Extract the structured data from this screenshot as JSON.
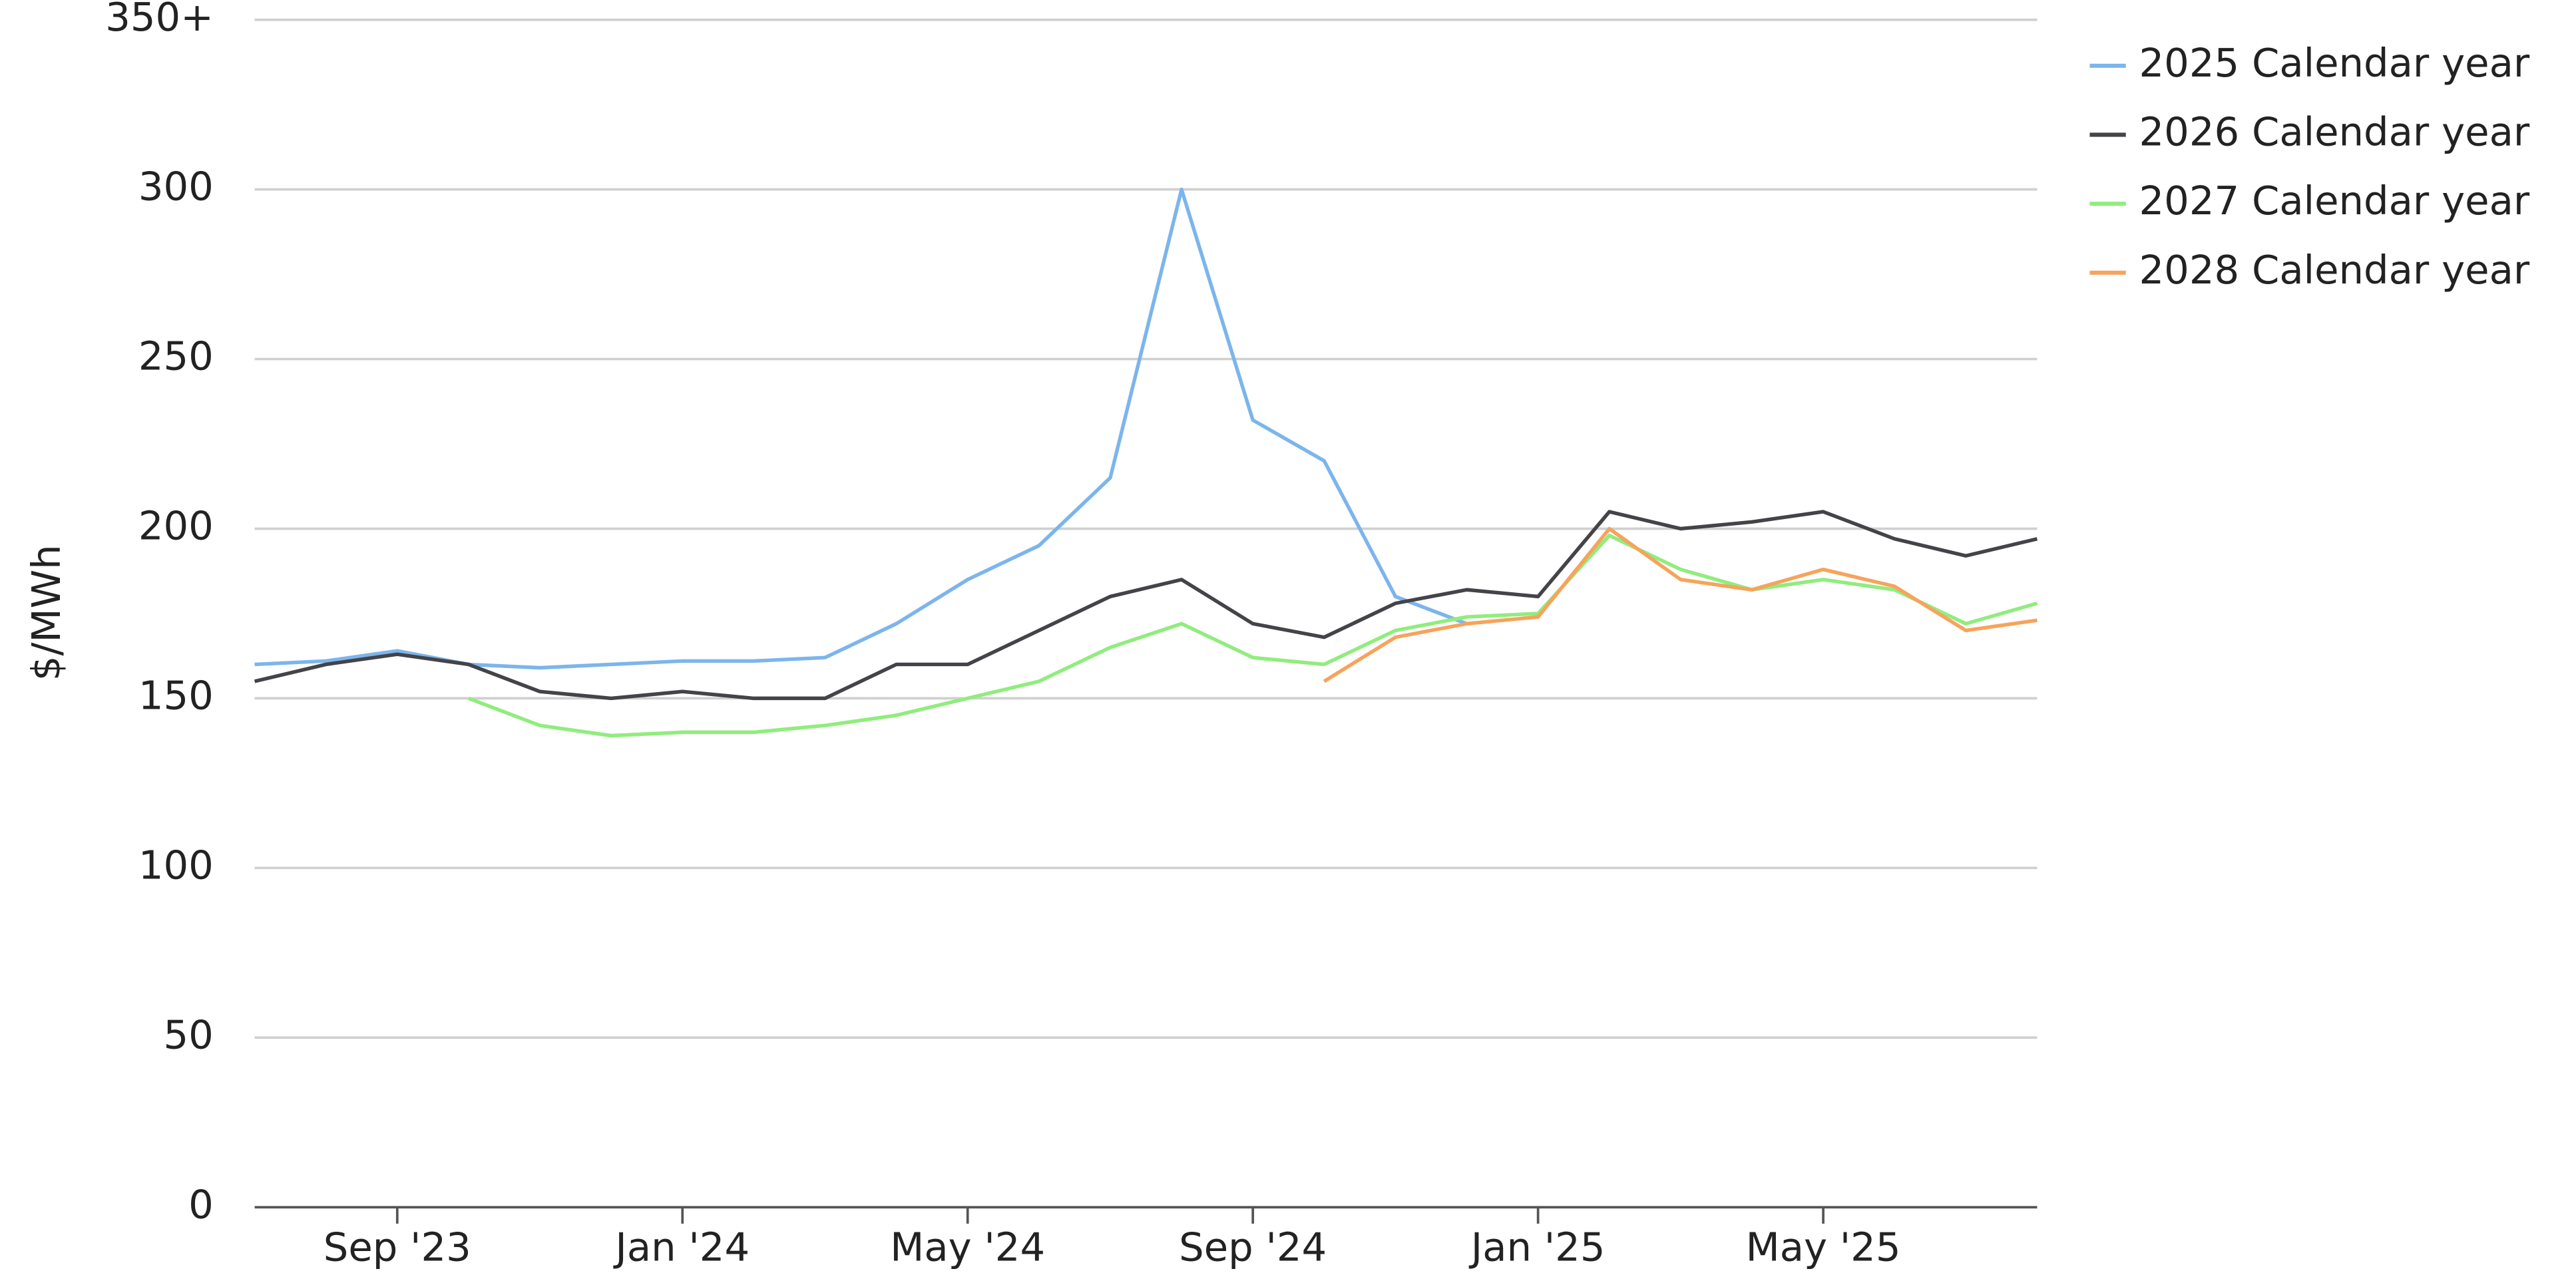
{
  "chart_data": {
    "type": "line",
    "y_label": "$/MWh",
    "x": [
      "2023-07",
      "2023-08",
      "2023-09",
      "2023-10",
      "2023-11",
      "2023-12",
      "2024-01",
      "2024-02",
      "2024-03",
      "2024-04",
      "2024-05",
      "2024-06",
      "2024-07",
      "2024-08",
      "2024-09",
      "2024-10",
      "2024-11",
      "2024-12",
      "2025-01",
      "2025-02",
      "2025-03",
      "2025-04",
      "2025-05",
      "2025-06",
      "2025-07",
      "2025-08"
    ],
    "xlim": [
      "2023-07",
      "2025-08"
    ],
    "xticks": [
      {
        "value": "2023-09",
        "label": "Sep '23"
      },
      {
        "value": "2024-01",
        "label": "Jan '24"
      },
      {
        "value": "2024-05",
        "label": "May '24"
      },
      {
        "value": "2024-09",
        "label": "Sep '24"
      },
      {
        "value": "2025-01",
        "label": "Jan '25"
      },
      {
        "value": "2025-05",
        "label": "May '25"
      }
    ],
    "ylim": [
      0,
      350
    ],
    "yticks": [
      0,
      50,
      100,
      150,
      200,
      250,
      300,
      {
        "value": 350,
        "label": "350+"
      }
    ],
    "grid": true,
    "legend": "right",
    "series": [
      {
        "name": "2025 Calendar year",
        "color": "#7cb5ec",
        "values": [
          160,
          161,
          164,
          160,
          159,
          160,
          161,
          161,
          162,
          172,
          185,
          195,
          215,
          300,
          232,
          220,
          180,
          172,
          null,
          null,
          null,
          null,
          null,
          null,
          null,
          null
        ]
      },
      {
        "name": "2026 Calendar year",
        "color": "#434348",
        "values": [
          155,
          160,
          163,
          160,
          152,
          150,
          152,
          150,
          150,
          160,
          160,
          170,
          180,
          185,
          172,
          168,
          178,
          182,
          180,
          205,
          200,
          202,
          205,
          197,
          192,
          197
        ]
      },
      {
        "name": "2027 Calendar year",
        "color": "#90ed7d",
        "values": [
          null,
          null,
          null,
          150,
          142,
          139,
          140,
          140,
          142,
          145,
          150,
          155,
          165,
          172,
          162,
          160,
          170,
          174,
          175,
          198,
          188,
          182,
          185,
          182,
          172,
          178
        ]
      },
      {
        "name": "2028 Calendar year",
        "color": "#f7a35c",
        "values": [
          null,
          null,
          null,
          null,
          null,
          null,
          null,
          null,
          null,
          null,
          null,
          null,
          null,
          null,
          null,
          155,
          168,
          172,
          174,
          200,
          185,
          182,
          188,
          183,
          170,
          173
        ]
      }
    ]
  }
}
